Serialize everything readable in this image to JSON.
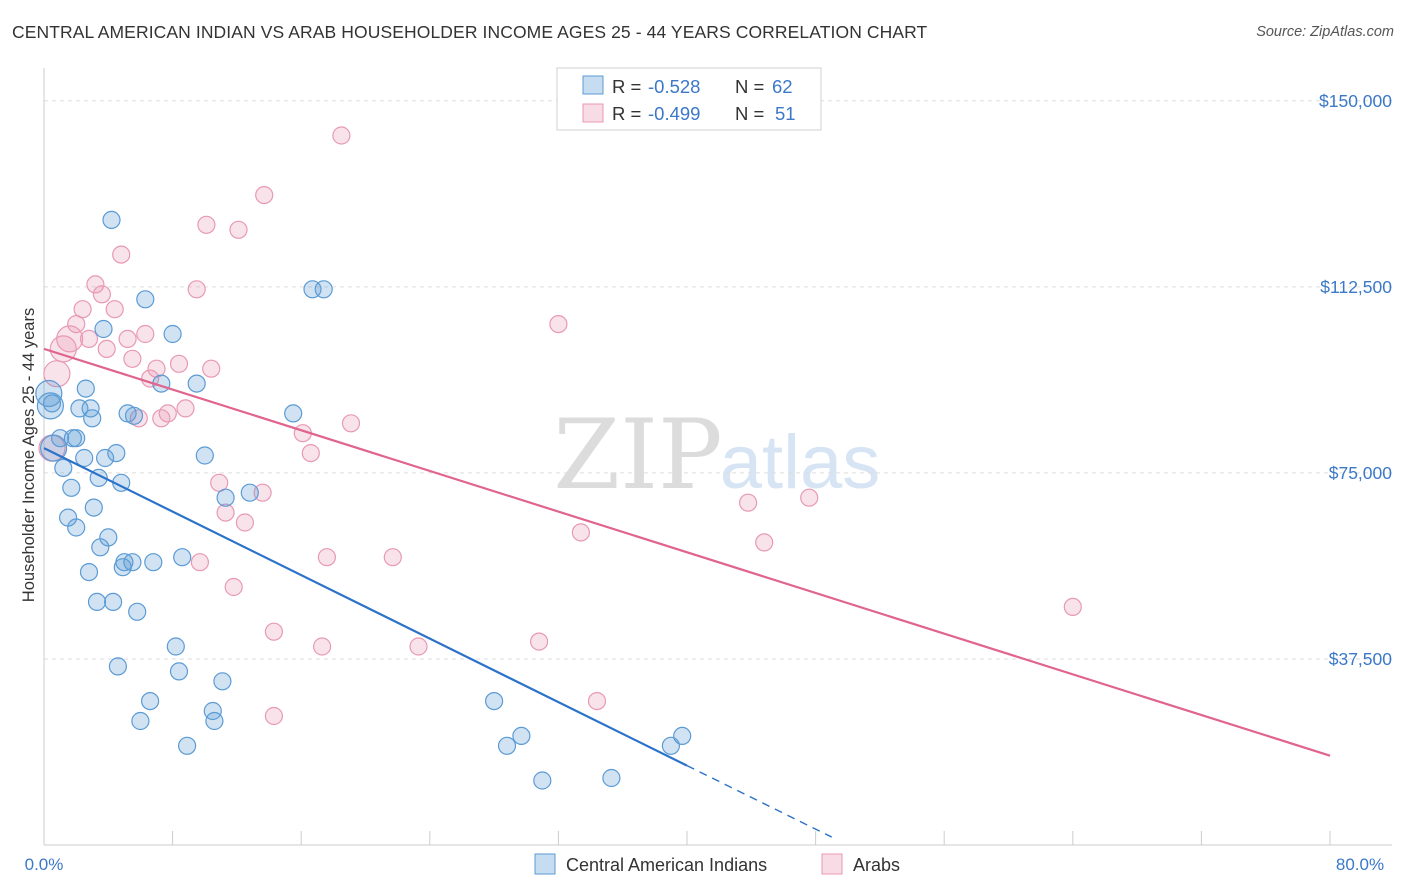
{
  "header": {
    "title": "CENTRAL AMERICAN INDIAN VS ARAB HOUSEHOLDER INCOME AGES 25 - 44 YEARS CORRELATION CHART",
    "source": "Source: ZipAtlas.com"
  },
  "watermark": {
    "zip": "ZIP",
    "atlas": "atlas"
  },
  "colors": {
    "blue": "#5b9bd5",
    "blue_fill": "rgba(91,155,213,0.28)",
    "blue_line": "#2b72c9",
    "pink": "#e899b4",
    "pink_fill": "rgba(232,153,180,0.28)",
    "pink_line": "#e0648e",
    "tick_label": "#3b78c8",
    "grid": "#dddddd"
  },
  "legend_top": {
    "rows": [
      {
        "series": "blue",
        "r_label": "R = ",
        "r_value": "-0.528",
        "n_label": "N = ",
        "n_value": "62"
      },
      {
        "series": "pink",
        "r_label": "R = ",
        "r_value": "-0.499",
        "n_label": "N = ",
        "n_value": "51"
      }
    ]
  },
  "legend_bottom": {
    "items": [
      "Central American Indians",
      "Arabs"
    ]
  },
  "chart_data": {
    "type": "scatter",
    "title": "CENTRAL AMERICAN INDIAN VS ARAB HOUSEHOLDER INCOME AGES 25 - 44 YEARS CORRELATION CHART",
    "xlabel": "",
    "ylabel": "Householder Income Ages 25 - 44 years",
    "xlim": [
      0,
      80
    ],
    "ylim": [
      0,
      155000
    ],
    "x_tick_labels": {
      "min": "0.0%",
      "max": "80.0%"
    },
    "y_ticks": [
      {
        "value": 37500,
        "label": "$37,500"
      },
      {
        "value": 75000,
        "label": "$75,000"
      },
      {
        "value": 112500,
        "label": "$112,500"
      },
      {
        "value": 150000,
        "label": "$150,000"
      }
    ],
    "grid": true,
    "series": [
      {
        "name": "Central American Indians",
        "color": "blue",
        "r": -0.528,
        "n": 62,
        "trend": {
          "x_start": 0,
          "y_start": 80000,
          "x_solid_end": 40,
          "x_dash_end": 49,
          "slope_per_pct": -1600
        },
        "points": [
          [
            0.3,
            91000
          ],
          [
            0.4,
            88500
          ],
          [
            0.5,
            89000
          ],
          [
            0.6,
            80000
          ],
          [
            1.0,
            82000
          ],
          [
            1.2,
            76000
          ],
          [
            1.5,
            66000
          ],
          [
            1.7,
            72000
          ],
          [
            1.8,
            82000
          ],
          [
            2.0,
            64000
          ],
          [
            2.2,
            88000
          ],
          [
            2.5,
            78000
          ],
          [
            2.6,
            92000
          ],
          [
            2.9,
            88000
          ],
          [
            2.8,
            55000
          ],
          [
            3.0,
            86000
          ],
          [
            3.1,
            68000
          ],
          [
            3.3,
            49000
          ],
          [
            3.4,
            74000
          ],
          [
            3.5,
            60000
          ],
          [
            3.7,
            104000
          ],
          [
            3.8,
            78000
          ],
          [
            4.0,
            62000
          ],
          [
            4.2,
            126000
          ],
          [
            4.3,
            49000
          ],
          [
            4.5,
            79000
          ],
          [
            4.6,
            36000
          ],
          [
            4.8,
            73000
          ],
          [
            4.9,
            56000
          ],
          [
            5.0,
            57000
          ],
          [
            5.2,
            87000
          ],
          [
            5.5,
            57000
          ],
          [
            5.6,
            86500
          ],
          [
            5.8,
            47000
          ],
          [
            6.0,
            25000
          ],
          [
            6.3,
            110000
          ],
          [
            6.6,
            29000
          ],
          [
            6.8,
            57000
          ],
          [
            7.3,
            93000
          ],
          [
            8.0,
            103000
          ],
          [
            8.2,
            40000
          ],
          [
            8.4,
            35000
          ],
          [
            8.6,
            58000
          ],
          [
            8.9,
            20000
          ],
          [
            9.5,
            93000
          ],
          [
            10.0,
            78500
          ],
          [
            10.5,
            27000
          ],
          [
            10.6,
            25000
          ],
          [
            11.1,
            33000
          ],
          [
            12.8,
            71000
          ],
          [
            15.5,
            87000
          ],
          [
            16.7,
            112000
          ],
          [
            17.4,
            112000
          ],
          [
            28.0,
            29000
          ],
          [
            28.8,
            20000
          ],
          [
            29.7,
            22000
          ],
          [
            31.0,
            13000
          ],
          [
            35.3,
            13500
          ],
          [
            39.0,
            20000
          ],
          [
            39.7,
            22000
          ],
          [
            11.3,
            70000
          ],
          [
            2.0,
            82000
          ]
        ]
      },
      {
        "name": "Arabs",
        "color": "pink",
        "r": -0.499,
        "n": 51,
        "trend": {
          "x_start": 0,
          "y_start": 100000,
          "x_end": 80,
          "slope_per_pct": -1025
        },
        "points": [
          [
            0.5,
            80000
          ],
          [
            0.8,
            95000
          ],
          [
            1.2,
            100000
          ],
          [
            1.6,
            102000
          ],
          [
            2.0,
            105000
          ],
          [
            2.4,
            108000
          ],
          [
            2.8,
            102000
          ],
          [
            3.2,
            113000
          ],
          [
            3.6,
            111000
          ],
          [
            3.9,
            100000
          ],
          [
            4.4,
            108000
          ],
          [
            4.8,
            119000
          ],
          [
            5.2,
            102000
          ],
          [
            5.5,
            98000
          ],
          [
            5.9,
            86000
          ],
          [
            6.3,
            103000
          ],
          [
            6.6,
            94000
          ],
          [
            7.0,
            96000
          ],
          [
            7.3,
            86000
          ],
          [
            7.7,
            87000
          ],
          [
            8.4,
            97000
          ],
          [
            8.8,
            88000
          ],
          [
            9.5,
            112000
          ],
          [
            10.1,
            125000
          ],
          [
            10.4,
            96000
          ],
          [
            10.9,
            73000
          ],
          [
            11.3,
            67000
          ],
          [
            11.8,
            52000
          ],
          [
            12.1,
            124000
          ],
          [
            12.5,
            65000
          ],
          [
            13.6,
            71000
          ],
          [
            13.7,
            131000
          ],
          [
            14.3,
            43000
          ],
          [
            14.3,
            26000
          ],
          [
            16.1,
            83000
          ],
          [
            16.6,
            79000
          ],
          [
            17.3,
            40000
          ],
          [
            17.6,
            58000
          ],
          [
            18.5,
            143000
          ],
          [
            19.1,
            85000
          ],
          [
            21.7,
            58000
          ],
          [
            23.3,
            40000
          ],
          [
            30.8,
            41000
          ],
          [
            32.0,
            105000
          ],
          [
            33.4,
            63000
          ],
          [
            34.4,
            29000
          ],
          [
            43.8,
            69000
          ],
          [
            44.8,
            61000
          ],
          [
            47.6,
            70000
          ],
          [
            64.0,
            48000
          ],
          [
            9.7,
            57000
          ]
        ]
      }
    ]
  }
}
